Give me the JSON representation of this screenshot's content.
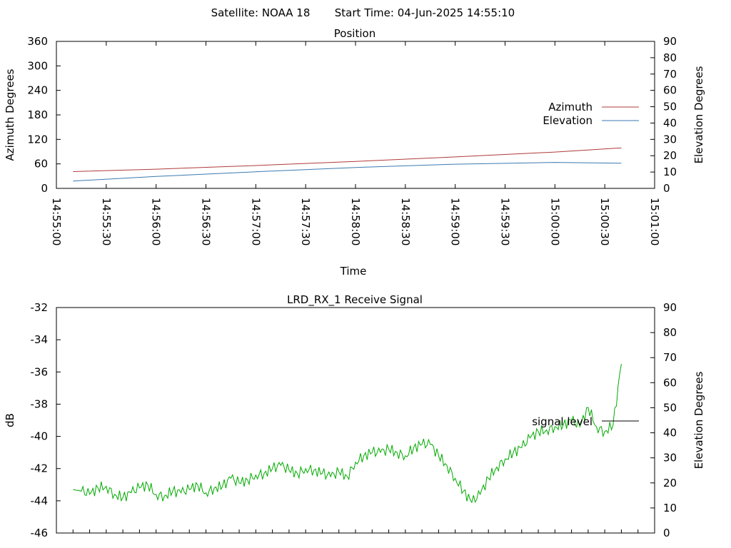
{
  "header": {
    "satellite": "Satellite: NOAA 18",
    "start_time": "Start Time: 04-Jun-2025 14:55:10"
  },
  "chart_data": [
    {
      "type": "line",
      "title": "Position",
      "xlabel": "Time",
      "ylabel": "Azimuth Degrees",
      "y2label": "Elevation Degrees",
      "x_ticks": [
        "14:55:00",
        "14:55:30",
        "14:56:00",
        "14:56:30",
        "14:57:00",
        "14:57:30",
        "14:58:00",
        "14:58:30",
        "14:59:00",
        "14:59:30",
        "15:00:00",
        "15:00:30",
        "15:01:00"
      ],
      "x_range_seconds": [
        0,
        360
      ],
      "ylim": [
        0,
        360
      ],
      "y_ticks": [
        0,
        60,
        120,
        180,
        240,
        300,
        360
      ],
      "y2lim": [
        0,
        90
      ],
      "y2_ticks": [
        0,
        10,
        20,
        30,
        40,
        50,
        60,
        70,
        80,
        90
      ],
      "legend_position": "right",
      "grid": false,
      "series": [
        {
          "name": "Azimuth",
          "axis": "y",
          "color": "#b03a3a",
          "x": [
            "14:55:10",
            "14:56:00",
            "14:57:00",
            "14:58:00",
            "14:59:00",
            "15:00:00",
            "15:00:40"
          ],
          "values": [
            41,
            47,
            56,
            66,
            77,
            89,
            99
          ]
        },
        {
          "name": "Elevation",
          "axis": "y2",
          "color": "#3a7ab0",
          "x": [
            "14:55:10",
            "14:56:00",
            "14:57:00",
            "14:58:00",
            "14:59:00",
            "15:00:00",
            "15:00:40"
          ],
          "values": [
            4.5,
            7.3,
            10.2,
            12.8,
            14.8,
            15.9,
            15.4
          ]
        }
      ]
    },
    {
      "type": "line",
      "title": "LRD_RX_1 Receive Signal",
      "ylabel": "dB",
      "y2label": "Elevation Degrees",
      "ylim": [
        -46,
        -32
      ],
      "y_ticks": [
        -46,
        -44,
        -42,
        -40,
        -38,
        -36,
        -34,
        -32
      ],
      "y2lim": [
        0,
        90
      ],
      "y2_ticks": [
        0,
        10,
        20,
        30,
        40,
        50,
        60,
        70,
        80,
        90
      ],
      "x_range_seconds": [
        0,
        360
      ],
      "legend_position": "right",
      "grid": false,
      "series": [
        {
          "name": "signal level",
          "color": "#00aa00",
          "x_seconds": [
            10,
            15,
            20,
            25,
            30,
            35,
            40,
            45,
            50,
            55,
            60,
            65,
            70,
            75,
            80,
            85,
            90,
            95,
            100,
            105,
            110,
            115,
            120,
            125,
            130,
            135,
            140,
            145,
            150,
            155,
            160,
            165,
            170,
            175,
            180,
            185,
            190,
            195,
            200,
            205,
            210,
            215,
            220,
            225,
            230,
            235,
            240,
            245,
            250,
            255,
            260,
            265,
            270,
            275,
            280,
            285,
            290,
            295,
            300,
            305,
            310,
            315,
            320,
            325,
            330,
            335,
            340
          ],
          "values": [
            -43.3,
            -43.4,
            -43.6,
            -43.2,
            -43.1,
            -43.6,
            -43.8,
            -43.5,
            -43.2,
            -43.0,
            -43.6,
            -43.7,
            -43.4,
            -43.5,
            -43.3,
            -43.0,
            -43.5,
            -43.2,
            -43.1,
            -42.6,
            -42.9,
            -42.7,
            -42.4,
            -42.3,
            -42.0,
            -41.8,
            -42.1,
            -42.3,
            -42.0,
            -42.1,
            -42.3,
            -42.5,
            -42.2,
            -42.5,
            -41.6,
            -41.2,
            -41.0,
            -41.0,
            -40.8,
            -41.0,
            -41.2,
            -40.7,
            -40.5,
            -40.5,
            -41.2,
            -41.8,
            -42.6,
            -43.4,
            -44.1,
            -43.6,
            -42.6,
            -41.9,
            -41.4,
            -41.0,
            -40.7,
            -40.1,
            -39.7,
            -39.6,
            -39.4,
            -39.3,
            -39.0,
            -39.4,
            -38.2,
            -39.4,
            -39.7,
            -39.3,
            -35.5
          ]
        }
      ]
    }
  ]
}
